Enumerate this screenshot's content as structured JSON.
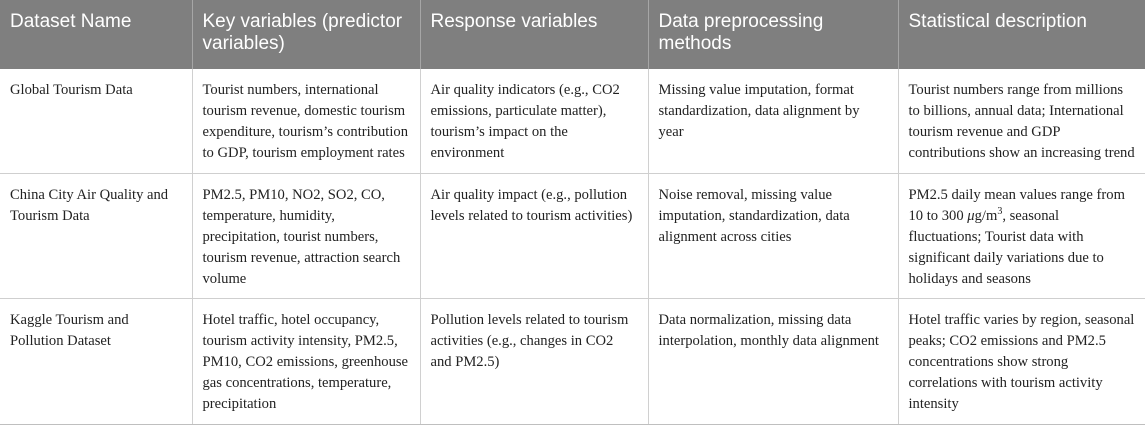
{
  "table": {
    "headers": [
      "Dataset Name",
      "Key variables (predictor variables)",
      "Response variables",
      "Data preprocessing methods",
      "Statistical description"
    ],
    "rows": [
      {
        "dataset": "Global Tourism Data",
        "key_variables": "Tourist numbers, international tourism revenue, domestic tourism expenditure, tourism’s contribution to GDP, tourism employment rates",
        "response_variables": "Air quality indicators (e.g., CO2 emissions, particulate matter), tourism’s impact on the environment",
        "preprocessing": "Missing value imputation, format standardization, data alignment by year",
        "statistics": "Tourist numbers range from millions to billions, annual data; International tourism revenue and GDP contributions show an increasing trend"
      },
      {
        "dataset": "China City Air Quality and Tourism Data",
        "key_variables": "PM2.5, PM10, NO2, SO2, CO, temperature, humidity, precipitation, tourist numbers, tourism revenue, attraction search volume",
        "response_variables": "Air quality impact (e.g., pollution levels related to tourism activities)",
        "preprocessing": "Noise removal, missing value imputation, standardization, data alignment across cities",
        "statistics_before_unit": "PM2.5 daily mean values range from 10 to 300 ",
        "statistics_unit_mu": "μ",
        "statistics_unit_g": "g/m",
        "statistics_unit_sup": "3",
        "statistics_after_unit": ", seasonal fluctuations; Tourist data with significant daily variations due to holidays and seasons"
      },
      {
        "dataset": "Kaggle Tourism and Pollution Dataset",
        "key_variables": "Hotel traffic, hotel occupancy, tourism activity intensity, PM2.5, PM10, CO2 emissions, greenhouse gas concentrations, temperature, precipitation",
        "response_variables": "Pollution levels related to tourism activities (e.g., changes in CO2 and PM2.5)",
        "preprocessing": "Data normalization, missing data interpolation, monthly data alignment",
        "statistics": "Hotel traffic varies by region, seasonal peaks; CO2 emissions and PM2.5 concentrations show strong correlations with tourism activity intensity"
      }
    ]
  }
}
